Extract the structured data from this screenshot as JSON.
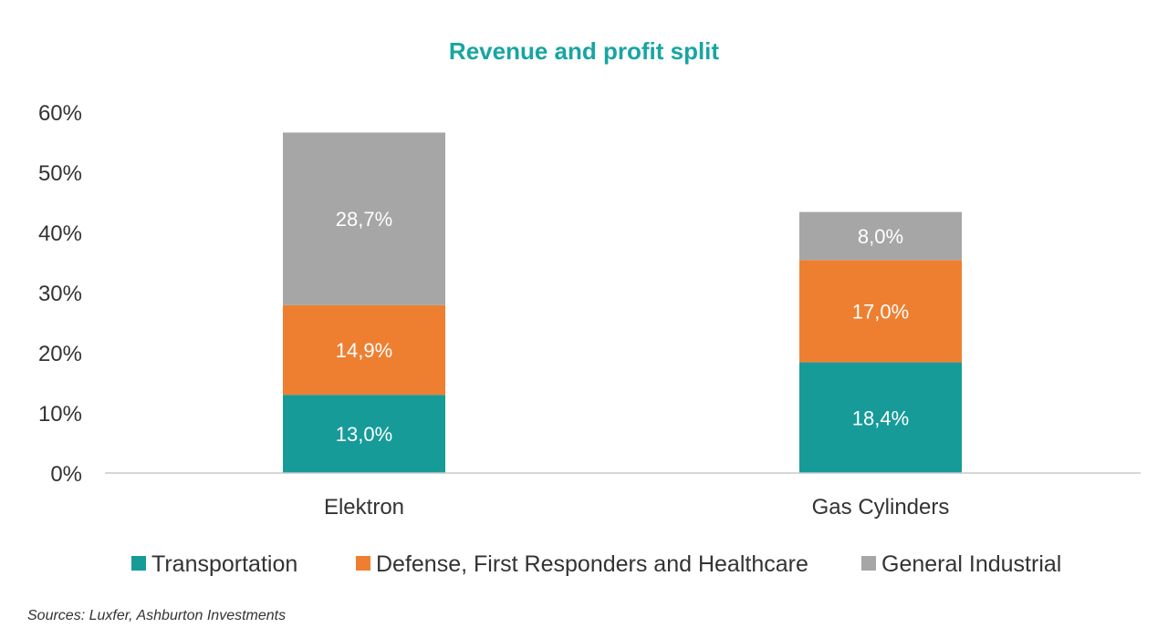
{
  "chart_data": {
    "type": "bar",
    "stacked": true,
    "title": "Revenue and profit split",
    "categories": [
      "Elektron",
      "Gas Cylinders"
    ],
    "series": [
      {
        "name": "Transportation",
        "values": [
          13.0,
          18.4
        ],
        "labels": [
          "13,0%",
          "18,4%"
        ],
        "color": "#169b99"
      },
      {
        "name": "Defense, First Responders and Healthcare",
        "values": [
          14.9,
          17.0
        ],
        "labels": [
          "14,9%",
          "17,0%"
        ],
        "color": "#ee7f31"
      },
      {
        "name": "General Industrial",
        "values": [
          28.7,
          8.0
        ],
        "labels": [
          "28,7%",
          "8,0%"
        ],
        "color": "#a6a6a6"
      }
    ],
    "yticks": [
      "0%",
      "10%",
      "20%",
      "30%",
      "40%",
      "50%",
      "60%"
    ],
    "ylim": [
      0,
      60
    ],
    "grid": false,
    "legend_position": "bottom",
    "title_color": "#18a5a2",
    "source": "Sources: Luxfer, Ashburton Investments"
  }
}
